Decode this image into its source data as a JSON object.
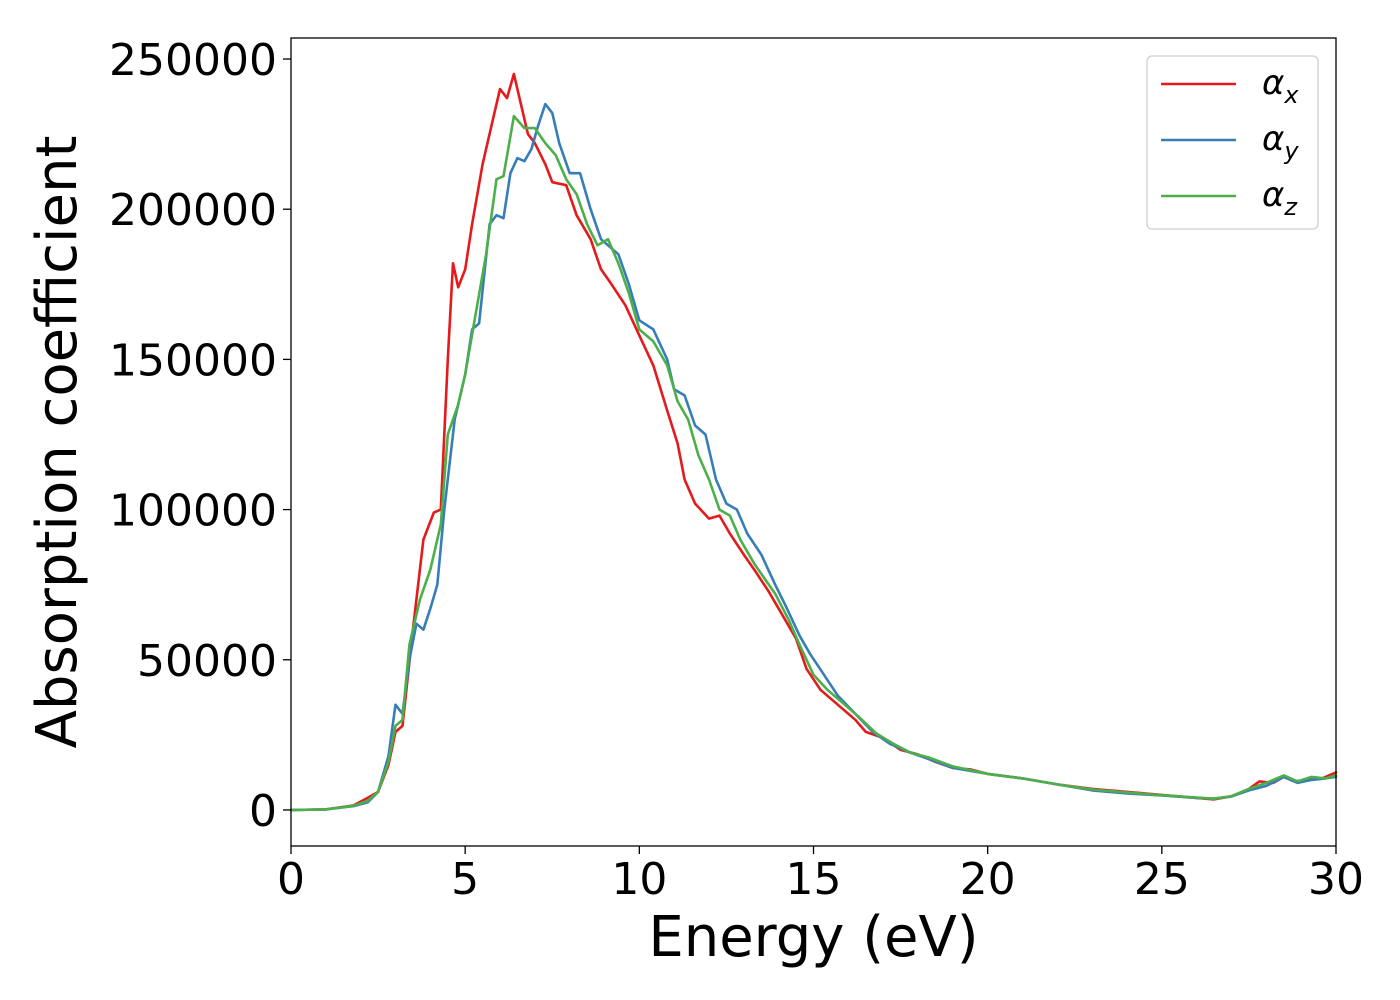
{
  "chart_data": {
    "type": "line",
    "title": "",
    "xlabel": "Energy (eV)",
    "ylabel": "Absorption coefficient",
    "xlim": [
      0,
      30
    ],
    "ylim": [
      -12000,
      257000
    ],
    "xticks": [
      0,
      5,
      10,
      15,
      20,
      25,
      30
    ],
    "xtick_labels": [
      "0",
      "5",
      "10",
      "15",
      "20",
      "25",
      "30"
    ],
    "yticks": [
      0,
      50000,
      100000,
      150000,
      200000,
      250000
    ],
    "ytick_labels": [
      "0",
      "50000",
      "100000",
      "150000",
      "200000",
      "250000"
    ],
    "grid": false,
    "legend_position": "top-right",
    "series": [
      {
        "name_base": "α",
        "name_sub": "x",
        "color": "#e41a1c",
        "points": [
          [
            0,
            0
          ],
          [
            1,
            200
          ],
          [
            1.8,
            1500
          ],
          [
            2.2,
            4000
          ],
          [
            2.5,
            6000
          ],
          [
            2.8,
            15000
          ],
          [
            3.0,
            26000
          ],
          [
            3.2,
            28000
          ],
          [
            3.5,
            60000
          ],
          [
            3.8,
            90000
          ],
          [
            4.1,
            99000
          ],
          [
            4.3,
            100000
          ],
          [
            4.5,
            150000
          ],
          [
            4.65,
            182000
          ],
          [
            4.8,
            174000
          ],
          [
            5.0,
            180000
          ],
          [
            5.2,
            195000
          ],
          [
            5.5,
            215000
          ],
          [
            5.8,
            230000
          ],
          [
            6.0,
            240000
          ],
          [
            6.2,
            237000
          ],
          [
            6.4,
            245000
          ],
          [
            6.6,
            235000
          ],
          [
            6.8,
            225000
          ],
          [
            7.0,
            222000
          ],
          [
            7.3,
            215000
          ],
          [
            7.5,
            209000
          ],
          [
            7.9,
            208000
          ],
          [
            8.2,
            198000
          ],
          [
            8.6,
            190000
          ],
          [
            8.9,
            180000
          ],
          [
            9.2,
            175000
          ],
          [
            9.6,
            168000
          ],
          [
            10.0,
            158000
          ],
          [
            10.4,
            148000
          ],
          [
            10.8,
            133000
          ],
          [
            11.1,
            122000
          ],
          [
            11.3,
            110000
          ],
          [
            11.6,
            102000
          ],
          [
            12.0,
            97000
          ],
          [
            12.3,
            98000
          ],
          [
            12.6,
            92000
          ],
          [
            13.0,
            85000
          ],
          [
            13.3,
            80000
          ],
          [
            13.7,
            73000
          ],
          [
            14.0,
            67000
          ],
          [
            14.5,
            57000
          ],
          [
            14.8,
            47000
          ],
          [
            15.2,
            40000
          ],
          [
            15.7,
            35000
          ],
          [
            16.2,
            30000
          ],
          [
            16.5,
            26000
          ],
          [
            17.0,
            24000
          ],
          [
            17.5,
            20000
          ],
          [
            18.0,
            18500
          ],
          [
            18.5,
            16000
          ],
          [
            19.0,
            14000
          ],
          [
            19.5,
            13500
          ],
          [
            20.0,
            12000
          ],
          [
            21.0,
            10500
          ],
          [
            22.0,
            8500
          ],
          [
            23.0,
            7000
          ],
          [
            24.0,
            6000
          ],
          [
            25.0,
            5000
          ],
          [
            26.0,
            4000
          ],
          [
            26.5,
            3500
          ],
          [
            27.0,
            4500
          ],
          [
            27.5,
            7000
          ],
          [
            27.8,
            9500
          ],
          [
            28.2,
            9000
          ],
          [
            28.5,
            11000
          ],
          [
            28.8,
            9500
          ],
          [
            29.2,
            10000
          ],
          [
            29.6,
            10500
          ],
          [
            30.0,
            12500
          ]
        ]
      },
      {
        "name_base": "α",
        "name_sub": "y",
        "color": "#377eb8",
        "points": [
          [
            0,
            0
          ],
          [
            1,
            200
          ],
          [
            1.8,
            1300
          ],
          [
            2.2,
            2500
          ],
          [
            2.5,
            6000
          ],
          [
            2.8,
            18000
          ],
          [
            3.0,
            35000
          ],
          [
            3.2,
            32000
          ],
          [
            3.4,
            50000
          ],
          [
            3.6,
            62000
          ],
          [
            3.8,
            60000
          ],
          [
            4.0,
            67000
          ],
          [
            4.2,
            75000
          ],
          [
            4.4,
            100000
          ],
          [
            4.7,
            130000
          ],
          [
            5.0,
            145000
          ],
          [
            5.2,
            160000
          ],
          [
            5.4,
            162000
          ],
          [
            5.7,
            195000
          ],
          [
            5.9,
            198000
          ],
          [
            6.1,
            197000
          ],
          [
            6.3,
            212000
          ],
          [
            6.5,
            217000
          ],
          [
            6.7,
            216000
          ],
          [
            6.9,
            220000
          ],
          [
            7.1,
            228000
          ],
          [
            7.3,
            235000
          ],
          [
            7.5,
            232000
          ],
          [
            7.7,
            222000
          ],
          [
            8.0,
            212000
          ],
          [
            8.3,
            212000
          ],
          [
            8.6,
            200000
          ],
          [
            8.9,
            190000
          ],
          [
            9.1,
            188000
          ],
          [
            9.4,
            185000
          ],
          [
            9.7,
            175000
          ],
          [
            10.0,
            163000
          ],
          [
            10.4,
            160000
          ],
          [
            10.8,
            150000
          ],
          [
            11.0,
            140000
          ],
          [
            11.3,
            138000
          ],
          [
            11.6,
            128000
          ],
          [
            11.9,
            125000
          ],
          [
            12.2,
            110000
          ],
          [
            12.5,
            102000
          ],
          [
            12.8,
            100000
          ],
          [
            13.1,
            92000
          ],
          [
            13.5,
            85000
          ],
          [
            13.9,
            75000
          ],
          [
            14.2,
            68000
          ],
          [
            14.6,
            58000
          ],
          [
            14.9,
            52000
          ],
          [
            15.3,
            45000
          ],
          [
            15.7,
            38000
          ],
          [
            16.2,
            32000
          ],
          [
            16.7,
            26000
          ],
          [
            17.2,
            22000
          ],
          [
            17.8,
            19000
          ],
          [
            18.3,
            17000
          ],
          [
            19.0,
            14000
          ],
          [
            20.0,
            12000
          ],
          [
            21.0,
            10500
          ],
          [
            22.0,
            8500
          ],
          [
            23.0,
            6500
          ],
          [
            24.0,
            5500
          ],
          [
            25.0,
            4800
          ],
          [
            26.0,
            4000
          ],
          [
            26.5,
            3800
          ],
          [
            27.0,
            4500
          ],
          [
            27.5,
            6500
          ],
          [
            28.0,
            8000
          ],
          [
            28.5,
            11000
          ],
          [
            28.9,
            9000
          ],
          [
            29.3,
            10000
          ],
          [
            29.7,
            10500
          ],
          [
            30.0,
            11000
          ]
        ]
      },
      {
        "name_base": "α",
        "name_sub": "z",
        "color": "#4daf4a",
        "points": [
          [
            0,
            0
          ],
          [
            1,
            200
          ],
          [
            1.8,
            1400
          ],
          [
            2.2,
            3000
          ],
          [
            2.5,
            6000
          ],
          [
            2.8,
            16000
          ],
          [
            3.0,
            28000
          ],
          [
            3.2,
            30000
          ],
          [
            3.4,
            55000
          ],
          [
            3.7,
            70000
          ],
          [
            4.0,
            80000
          ],
          [
            4.3,
            95000
          ],
          [
            4.5,
            125000
          ],
          [
            4.8,
            135000
          ],
          [
            5.0,
            145000
          ],
          [
            5.3,
            165000
          ],
          [
            5.6,
            185000
          ],
          [
            5.9,
            210000
          ],
          [
            6.1,
            211000
          ],
          [
            6.4,
            231000
          ],
          [
            6.7,
            227000
          ],
          [
            7.0,
            227000
          ],
          [
            7.3,
            222000
          ],
          [
            7.6,
            218000
          ],
          [
            7.9,
            210000
          ],
          [
            8.2,
            205000
          ],
          [
            8.5,
            195000
          ],
          [
            8.8,
            188000
          ],
          [
            9.1,
            190000
          ],
          [
            9.4,
            182000
          ],
          [
            9.7,
            172000
          ],
          [
            10.0,
            160000
          ],
          [
            10.4,
            156000
          ],
          [
            10.8,
            148000
          ],
          [
            11.1,
            136000
          ],
          [
            11.4,
            130000
          ],
          [
            11.7,
            118000
          ],
          [
            12.0,
            110000
          ],
          [
            12.3,
            100000
          ],
          [
            12.6,
            98000
          ],
          [
            12.9,
            90000
          ],
          [
            13.3,
            82000
          ],
          [
            13.6,
            77000
          ],
          [
            13.9,
            72000
          ],
          [
            14.3,
            63000
          ],
          [
            14.6,
            55000
          ],
          [
            15.0,
            45000
          ],
          [
            15.4,
            40000
          ],
          [
            15.8,
            36000
          ],
          [
            16.3,
            31000
          ],
          [
            16.8,
            25500
          ],
          [
            17.3,
            22000
          ],
          [
            17.8,
            19000
          ],
          [
            18.3,
            17500
          ],
          [
            19.0,
            14500
          ],
          [
            20.0,
            12000
          ],
          [
            21.0,
            10500
          ],
          [
            22.0,
            8500
          ],
          [
            23.0,
            6800
          ],
          [
            24.0,
            5800
          ],
          [
            25.0,
            4900
          ],
          [
            26.0,
            4100
          ],
          [
            26.5,
            3700
          ],
          [
            27.0,
            4600
          ],
          [
            27.5,
            7000
          ],
          [
            28.0,
            9000
          ],
          [
            28.5,
            11500
          ],
          [
            28.9,
            9500
          ],
          [
            29.3,
            11000
          ],
          [
            29.7,
            10500
          ],
          [
            30.0,
            11500
          ]
        ]
      }
    ]
  }
}
